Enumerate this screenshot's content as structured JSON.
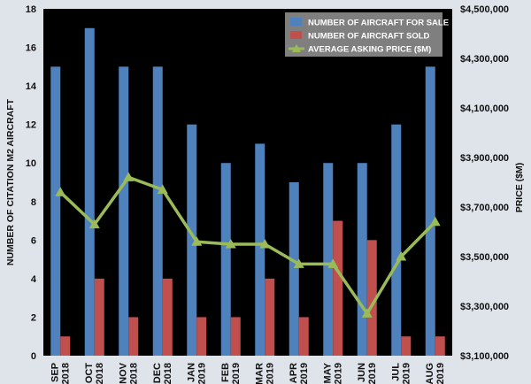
{
  "chart_data": {
    "type": "bar",
    "categories": [
      [
        "SEP",
        "2018"
      ],
      [
        "OCT",
        "2018"
      ],
      [
        "NOV",
        "2018"
      ],
      [
        "DEC",
        "2018"
      ],
      [
        "JAN",
        "2019"
      ],
      [
        "FEB",
        "2019"
      ],
      [
        "MAR",
        "2019"
      ],
      [
        "APR",
        "2019"
      ],
      [
        "MAY",
        "2019"
      ],
      [
        "JUN",
        "2019"
      ],
      [
        "JUL",
        "2019"
      ],
      [
        "AUG",
        "2019"
      ]
    ],
    "series": [
      {
        "name": "NUMBER OF AIRCRAFT FOR SALE",
        "type": "bar",
        "axis": "left",
        "color": "#4f81bd",
        "values": [
          15,
          17,
          15,
          15,
          12,
          10,
          11,
          9,
          10,
          10,
          12,
          15
        ]
      },
      {
        "name": "NUMBER OF AIRCRAFT SOLD",
        "type": "bar",
        "axis": "left",
        "color": "#c0504d",
        "values": [
          1,
          4,
          2,
          4,
          2,
          2,
          4,
          2,
          7,
          6,
          1,
          1
        ]
      },
      {
        "name": "AVERAGE ASKING PRICE ($M)",
        "type": "line",
        "axis": "right",
        "color": "#9bbb59",
        "values": [
          3760000,
          3630000,
          3820000,
          3770000,
          3560000,
          3550000,
          3550000,
          3470000,
          3470000,
          3270000,
          3500000,
          3640000
        ]
      }
    ],
    "ylabel": "NUMBER OF CITATION M2 AIRCRAFT",
    "ylim": [
      0,
      18
    ],
    "yticks": [
      "0",
      "2",
      "4",
      "6",
      "8",
      "10",
      "12",
      "14",
      "16",
      "18"
    ],
    "y2label": "PRICE ($M)",
    "y2lim": [
      3100000,
      4500000
    ],
    "y2ticks": [
      "$3,100,000",
      "$3,300,000",
      "$3,500,000",
      "$3,700,000",
      "$3,900,000",
      "$4,100,000",
      "$4,300,000",
      "$4,500,000"
    ],
    "legend_position": "top-right",
    "plot_background": "#000000",
    "page_background": "#dfe3ea",
    "grid": false
  }
}
